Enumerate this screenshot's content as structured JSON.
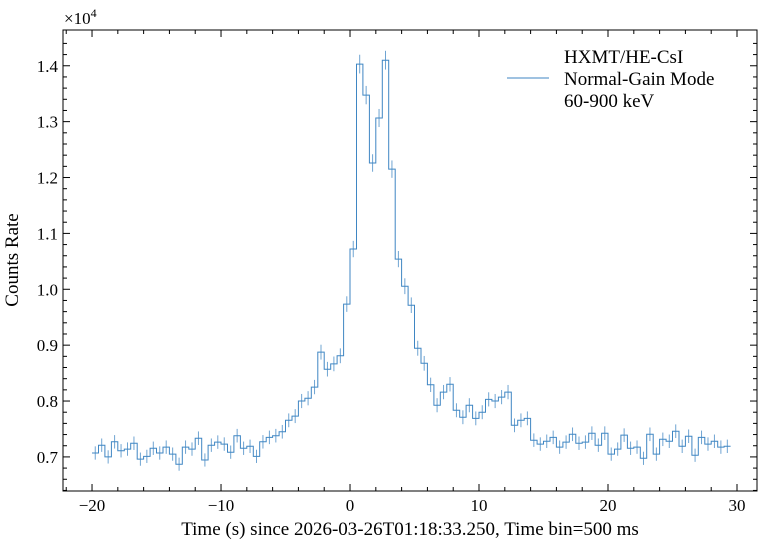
{
  "chart_data": {
    "type": "line",
    "style": "step histogram with error bars",
    "xlabel": "Time (s) since 2026-03-26T01:18:33.250, Time bin=500 ms",
    "ylabel": "Counts Rate",
    "y_scale_label": "×10",
    "y_scale_exp": "4",
    "xlim": [
      -22.25,
      31.55
    ],
    "ylim": [
      0.639,
      1.464
    ],
    "xticks": [
      -20,
      -10,
      0,
      10,
      20,
      30
    ],
    "xtick_labels": [
      "−20",
      "−10",
      "0",
      "10",
      "20",
      "30"
    ],
    "yticks": [
      0.7,
      0.8,
      0.9,
      1.0,
      1.1,
      1.2,
      1.3,
      1.4
    ],
    "ytick_labels": [
      "0.7",
      "0.8",
      "0.9",
      "1.0",
      "1.1",
      "1.2",
      "1.3",
      "1.4"
    ],
    "grid": false,
    "legend_position": "top-right",
    "legend": [
      "HXMT/HE-CsI",
      "Normal-Gain Mode",
      "60-900 keV"
    ],
    "bin_width": 0.5,
    "x_start": -20,
    "series": [
      {
        "name": "HXMT/HE-CsI Normal-Gain Mode 60-900 keV",
        "color": "#3f86c3",
        "values": [
          7070,
          7210,
          7000,
          7270,
          7110,
          7140,
          7245,
          6960,
          7010,
          7155,
          7070,
          7175,
          7050,
          6870,
          7175,
          7140,
          7335,
          6945,
          7210,
          7265,
          7230,
          7085,
          7380,
          7155,
          7190,
          7010,
          7270,
          7350,
          7380,
          7450,
          7655,
          7730,
          8000,
          8050,
          8250,
          8875,
          8570,
          8665,
          8810,
          9735,
          10720,
          14030,
          13475,
          12260,
          13065,
          14100,
          12150,
          10540,
          10055,
          9715,
          8945,
          8675,
          8290,
          7925,
          8160,
          8300,
          7835,
          7710,
          7925,
          7690,
          7800,
          8030,
          8000,
          8070,
          8160,
          7565,
          7655,
          7690,
          7300,
          7230,
          7280,
          7350,
          7175,
          7265,
          7405,
          7245,
          7265,
          7425,
          7210,
          7425,
          7050,
          7140,
          7390,
          7155,
          7175,
          6975,
          7405,
          7050,
          7315,
          7280,
          7460,
          7190,
          7370,
          7030,
          7350,
          7230,
          7280,
          7175,
          7190
        ]
      }
    ]
  }
}
